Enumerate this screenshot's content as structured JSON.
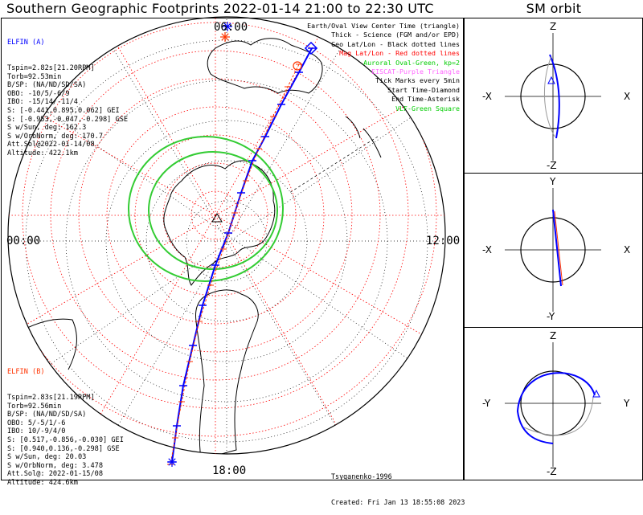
{
  "titles": {
    "main": "Southern Geographic Footprints 2022-01-14 21:00 to 22:30 UTC",
    "side": "SM orbit"
  },
  "map": {
    "center_time_label": "00:00",
    "time_labels": [
      "06:00",
      "00:00",
      "12:00",
      "18:00"
    ]
  },
  "elfin_a": {
    "header": "ELFIN (A)",
    "lines": [
      "Tspin=2.82s[21.20RPM]",
      "Torb=92.53min",
      "B/SP: (NA/ND/SD/SA)",
      "OBO: -10/5/-6/9",
      "IBO: -15/14/-11/4",
      "S: [-0.441,0.895,0.062] GEI",
      "S: [-0.953,-0.047,-0.298] GSE",
      "S w/Sun, deg: 162.3",
      "S w/OrbNorm, deg: 170.7",
      "Att.Sol@2022-01-14/08",
      "Altitude: 422.1km"
    ]
  },
  "elfin_b": {
    "header": "ELFIN (B)",
    "lines": [
      "Tspin=2.83s[21.19RPM]",
      "Torb=92.56min",
      "B/SP: (NA/ND/SD/SA)",
      "OBO: 5/-5/1/-6",
      "IBO: 10/-9/4/0",
      "S: [0.517,-0.856,-0.030] GEI",
      "S: [0.940,0.136,-0.298] GSE",
      "S w/Sun, deg: 20.03",
      "S w/OrbNorm, deg: 3.478",
      "Att.Sol@: 2022-01-15/08",
      "Altitude: 424.6km"
    ]
  },
  "legend": [
    {
      "text": "Earth/Oval View Center Time (triangle)",
      "color": "#000000"
    },
    {
      "text": "Thick - Science (FGM and/or EPD)",
      "color": "#000000"
    },
    {
      "text": "Geo Lat/Lon - Black dotted lines",
      "color": "#000000"
    },
    {
      "text": "Mag Lat/Lon - Red dotted lines",
      "color": "#ff0000"
    },
    {
      "text": "Auroral Oval-Green, kp=2",
      "color": "#00cc00"
    },
    {
      "text": "EISCAT-Purple Triangle",
      "color": "#ff66ff"
    },
    {
      "text": "Tick Marks every 5min",
      "color": "#000000"
    },
    {
      "text": "Start Time-Diamond",
      "color": "#000000"
    },
    {
      "text": "End Time-Asterisk",
      "color": "#000000"
    },
    {
      "text": "VLF-Green Square",
      "color": "#00cc00"
    }
  ],
  "footer": {
    "model": "Tsyganenko-1996",
    "created": "Created: Fri Jan 13 18:55:08 2023"
  },
  "sm_panels": [
    {
      "top": "Z",
      "bottom": "-Z",
      "left": "-X",
      "right": "X"
    },
    {
      "top": "Y",
      "bottom": "-Y",
      "left": "-X",
      "right": "X"
    },
    {
      "top": "Z",
      "bottom": "-Z",
      "left": "-Y",
      "right": "Y"
    }
  ],
  "colors": {
    "orbit_a": "#0000ff",
    "orbit_b": "#ff3300",
    "geo_grid": "#000000",
    "mag_grid": "#ff0000",
    "auroral_oval": "#33cc33",
    "elfin_a_label": "#0000ff",
    "elfin_b_label": "#ff3300"
  }
}
